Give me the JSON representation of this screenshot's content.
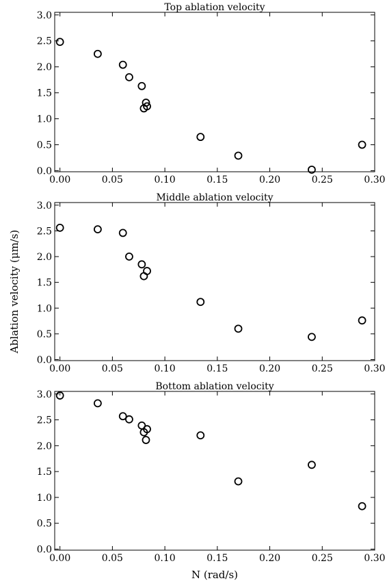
{
  "figure": {
    "shared_ylabel": "Ablation velocity (μm/s)",
    "shared_xlabel": "N (rad/s)"
  },
  "chart_data": [
    {
      "type": "scatter",
      "title": "Top ablation velocity",
      "xlabel": "",
      "ylabel": "",
      "xlim": [
        -0.005,
        0.3
      ],
      "ylim": [
        -0.02,
        3.05
      ],
      "xticks": [
        0.0,
        0.05,
        0.1,
        0.15,
        0.2,
        0.25,
        0.3
      ],
      "xtick_labels": [
        "0.00",
        "0.05",
        "0.10",
        "0.15",
        "0.20",
        "0.25",
        "0.30"
      ],
      "yticks": [
        0.0,
        0.5,
        1.0,
        1.5,
        2.0,
        2.5,
        3.0
      ],
      "ytick_labels": [
        "0.0",
        "0.5",
        "1.0",
        "1.5",
        "2.0",
        "2.5",
        "3.0"
      ],
      "grid": false,
      "marker": "open-circle",
      "x": [
        0.0,
        0.036,
        0.06,
        0.066,
        0.078,
        0.08,
        0.082,
        0.083,
        0.134,
        0.17,
        0.24,
        0.288
      ],
      "y": [
        2.48,
        2.25,
        2.04,
        1.8,
        1.63,
        1.2,
        1.31,
        1.24,
        0.65,
        0.29,
        0.02,
        0.5
      ]
    },
    {
      "type": "scatter",
      "title": "Middle ablation velocity",
      "xlabel": "",
      "ylabel": "",
      "xlim": [
        -0.005,
        0.3
      ],
      "ylim": [
        -0.02,
        3.05
      ],
      "xticks": [
        0.0,
        0.05,
        0.1,
        0.15,
        0.2,
        0.25,
        0.3
      ],
      "xtick_labels": [
        "0.00",
        "0.05",
        "0.10",
        "0.15",
        "0.20",
        "0.25",
        "0.30"
      ],
      "yticks": [
        0.0,
        0.5,
        1.0,
        1.5,
        2.0,
        2.5,
        3.0
      ],
      "ytick_labels": [
        "0.0",
        "0.5",
        "1.0",
        "1.5",
        "2.0",
        "2.5",
        "3.0"
      ],
      "grid": false,
      "marker": "open-circle",
      "x": [
        0.0,
        0.036,
        0.06,
        0.066,
        0.078,
        0.08,
        0.083,
        0.134,
        0.17,
        0.24,
        0.288
      ],
      "y": [
        2.56,
        2.53,
        2.46,
        2.0,
        1.85,
        1.62,
        1.72,
        1.12,
        0.6,
        0.44,
        0.76
      ]
    },
    {
      "type": "scatter",
      "title": "Bottom ablation velocity",
      "xlabel": "",
      "ylabel": "",
      "xlim": [
        -0.005,
        0.3
      ],
      "ylim": [
        -0.02,
        3.05
      ],
      "xticks": [
        0.0,
        0.05,
        0.1,
        0.15,
        0.2,
        0.25,
        0.3
      ],
      "xtick_labels": [
        "0.00",
        "0.05",
        "0.10",
        "0.15",
        "0.20",
        "0.25",
        "0.30"
      ],
      "yticks": [
        0.0,
        0.5,
        1.0,
        1.5,
        2.0,
        2.5,
        3.0
      ],
      "ytick_labels": [
        "0.0",
        "0.5",
        "1.0",
        "1.5",
        "2.0",
        "2.5",
        "3.0"
      ],
      "grid": false,
      "marker": "open-circle",
      "x": [
        0.0,
        0.036,
        0.06,
        0.066,
        0.078,
        0.08,
        0.082,
        0.083,
        0.134,
        0.17,
        0.24,
        0.288
      ],
      "y": [
        2.97,
        2.82,
        2.57,
        2.51,
        2.39,
        2.26,
        2.11,
        2.32,
        2.2,
        1.31,
        1.63,
        0.83
      ]
    }
  ]
}
